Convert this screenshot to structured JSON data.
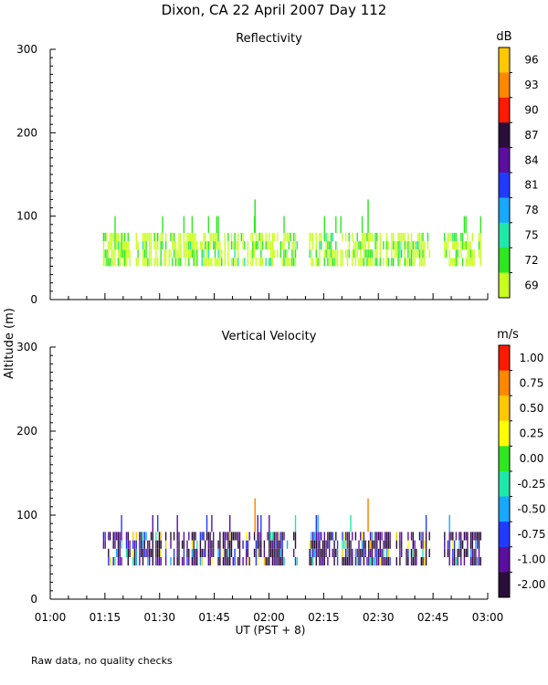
{
  "title": "Dixon, CA 22 April 2007  Day 112",
  "ylabel": "Altitude (m)",
  "xlabel": "UT  (PST + 8)",
  "footnote": "Raw data, no quality checks",
  "x_ticks": [
    "01:00",
    "01:15",
    "01:30",
    "01:45",
    "02:00",
    "02:15",
    "02:30",
    "02:45",
    "03:00"
  ],
  "y_ticks": [
    "0",
    "100",
    "200",
    "300"
  ],
  "chart_data": [
    {
      "type": "heatmap",
      "title": "Reflectivity",
      "xlabel": "UT  (PST + 8)",
      "ylabel": "Altitude (m)",
      "xlim": [
        "01:00",
        "03:00"
      ],
      "ylim": [
        0,
        300
      ],
      "colorbar": {
        "unit": "dB",
        "ticks": [
          "96",
          "93",
          "90",
          "87",
          "84",
          "81",
          "78",
          "75",
          "72",
          "69"
        ],
        "colors": [
          "#ffc800",
          "#ff8800",
          "#ff1a00",
          "#2a0e3a",
          "#5a0fa0",
          "#1f3bff",
          "#17a8ff",
          "#1fe8a8",
          "#2ee81f",
          "#c8ff1f"
        ]
      },
      "data_summary": "Intermittent echoes from about 01:14 to 02:58 UT between 40 and 80 m altitude, occasional spikes to about 100-120 m; values mostly 69-72 dB",
      "segments": [
        [
          "01:14",
          "02:08"
        ],
        [
          "02:11",
          "02:44"
        ],
        [
          "02:48",
          "02:58"
        ]
      ],
      "peaks_m": [
        [
          "01:56",
          120
        ],
        [
          "02:27",
          120
        ]
      ]
    },
    {
      "type": "heatmap",
      "title": "Vertical Velocity",
      "xlabel": "UT  (PST + 8)",
      "ylabel": "Altitude (m)",
      "xlim": [
        "01:00",
        "03:00"
      ],
      "ylim": [
        0,
        300
      ],
      "colorbar": {
        "unit": "m/s",
        "ticks": [
          "1.00",
          "0.75",
          "0.50",
          "0.25",
          "0.00",
          "-0.25",
          "-0.50",
          "-0.75",
          "-1.00",
          "-2.00"
        ],
        "colors": [
          "#ff1a00",
          "#ff8800",
          "#ffc800",
          "#ffff00",
          "#2ee81f",
          "#1fe8a8",
          "#17a8ff",
          "#1f3bff",
          "#5a0fa0",
          "#2a0e3a"
        ]
      },
      "data_summary": "Same time/altitude coverage as reflectivity; velocities mostly between -2.00 and -0.50 m/s with scattered positive values up to 1.00 m/s",
      "segments": [
        [
          "01:14",
          "02:08"
        ],
        [
          "02:11",
          "02:44"
        ],
        [
          "02:48",
          "02:58"
        ]
      ],
      "peaks_m": [
        [
          "01:56",
          120
        ],
        [
          "02:27",
          120
        ]
      ]
    }
  ]
}
